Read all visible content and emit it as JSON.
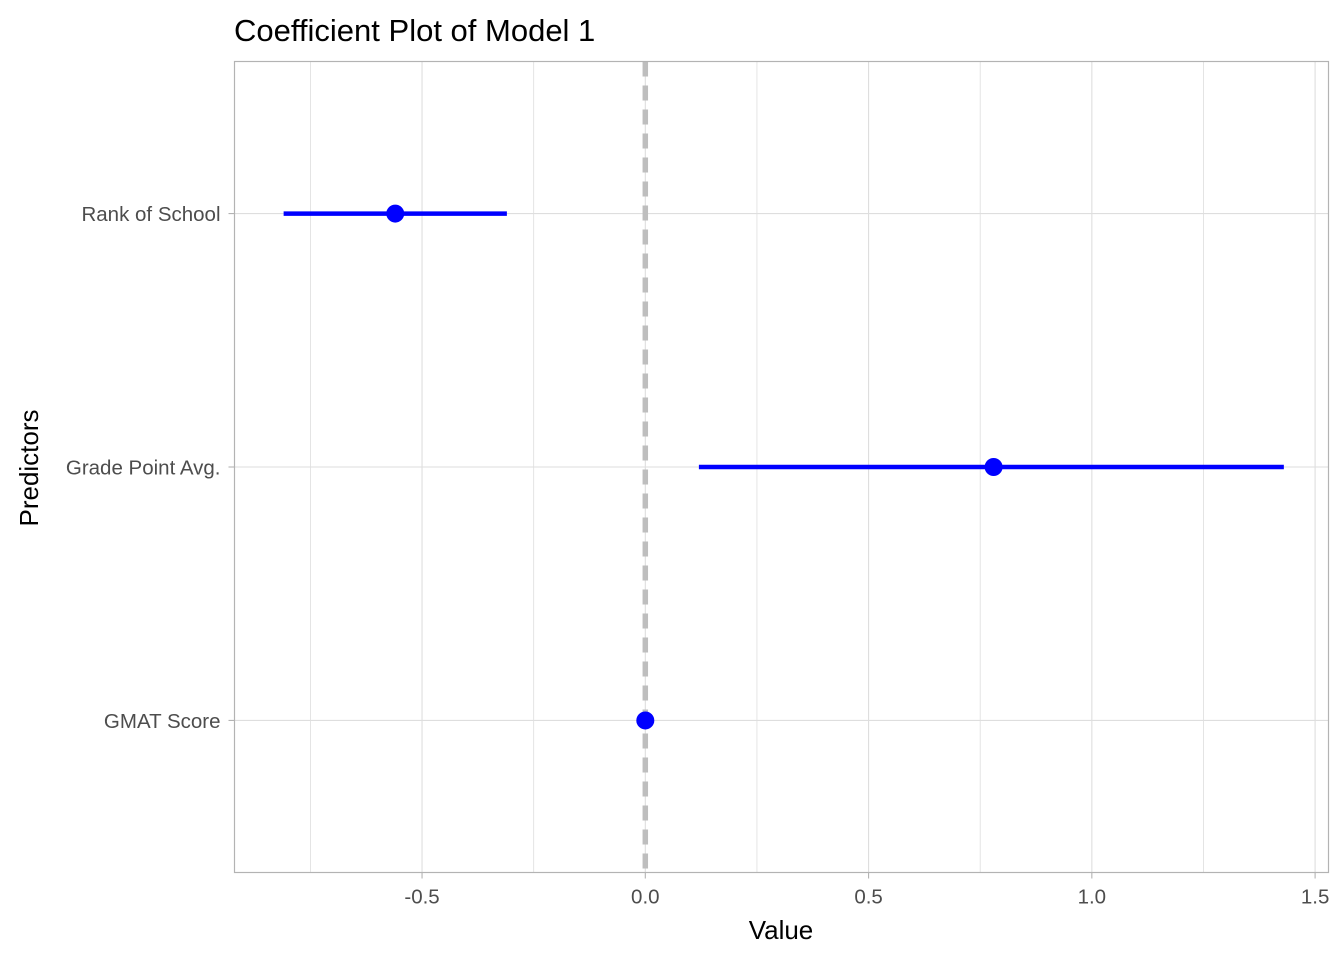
{
  "chart_data": {
    "type": "scatter",
    "subtype": "coefficient-plot",
    "title": "Coefficient Plot of Model 1",
    "xlabel": "Value",
    "ylabel": "Predictors",
    "xlim": [
      -0.92,
      1.53
    ],
    "x_ticks": [
      -0.5,
      0.0,
      0.5,
      1.0,
      1.5
    ],
    "x_tick_labels": [
      "-0.5",
      "0.0",
      "0.5",
      "1.0",
      "1.5"
    ],
    "categories": [
      "Rank of School",
      "Grade Point Avg.",
      "GMAT Score"
    ],
    "series": [
      {
        "estimate": [
          -0.56,
          0.78,
          0.0
        ],
        "ci_low": [
          -0.81,
          0.12,
          -0.005
        ],
        "ci_high": [
          -0.31,
          1.43,
          0.005
        ]
      }
    ],
    "reference_line": {
      "x": 0,
      "style": "dashed",
      "color": "#bebebe"
    },
    "point_color": "#0000ff",
    "grid": true,
    "legend": "none",
    "colors": {
      "grid": "#dedede",
      "panel_border": "#b3b3b3",
      "tick_text": "#4d4d4d"
    }
  }
}
